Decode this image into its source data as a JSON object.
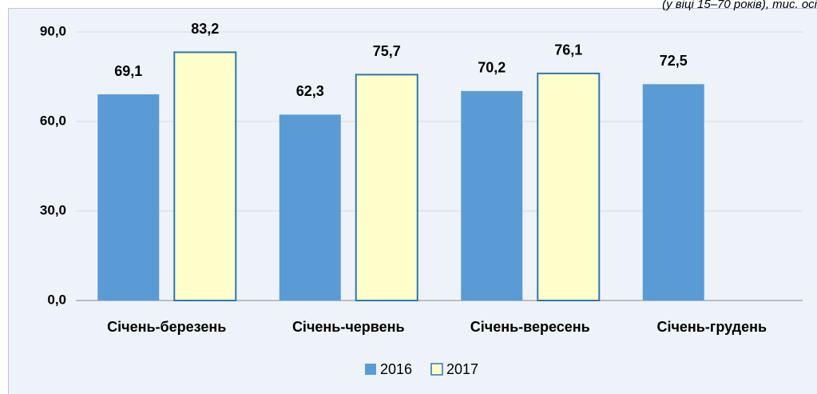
{
  "chart_data": {
    "type": "bar",
    "subtitle": "(у віці 15–70 років), тис. осі",
    "categories": [
      "Січень-березень",
      "Січень-червень",
      "Січень-вересень",
      "Січень-грудень"
    ],
    "series": [
      {
        "name": "2016",
        "color": "#5b9bd5",
        "values": [
          69.1,
          62.3,
          70.2,
          72.5
        ],
        "value_labels": [
          "69,1",
          "62,3",
          "70,2",
          "72,5"
        ]
      },
      {
        "name": "2017",
        "color": "#ffffcc",
        "values": [
          83.2,
          75.7,
          76.1,
          null
        ],
        "value_labels": [
          "83,2",
          "75,7",
          "76,1",
          null
        ]
      }
    ],
    "ylim": [
      0,
      90
    ],
    "yticks": [
      {
        "value": 0,
        "label": "0,0"
      },
      {
        "value": 30,
        "label": "30,0"
      },
      {
        "value": 60,
        "label": "60,0"
      },
      {
        "value": 90,
        "label": "90,0"
      }
    ],
    "grid": true,
    "legend": "bottom"
  }
}
